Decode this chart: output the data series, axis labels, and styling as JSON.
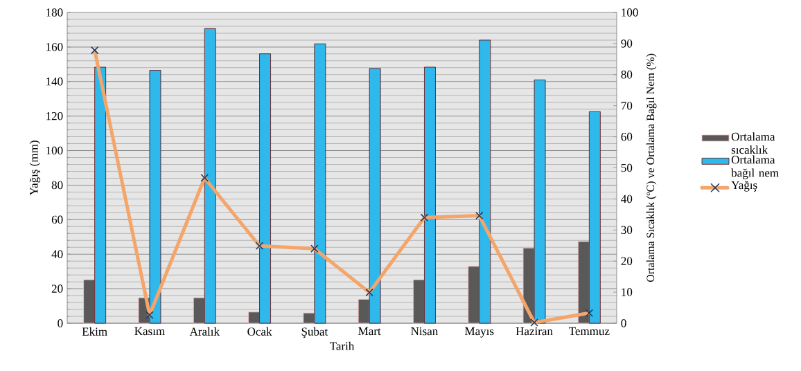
{
  "chart_data": {
    "type": "bar",
    "xlabel": "Tarih",
    "ylabel": "Yağış (mm)",
    "y2label": "Ortalama Sıcaklık (ºC) ve Ortalama Bağıl Nem (%)",
    "categories": [
      "Ekim",
      "Kasım",
      "Aralık",
      "Ocak",
      "Şubat",
      "Mart",
      "Nisan",
      "Mayıs",
      "Haziran",
      "Temmuz"
    ],
    "series": [
      {
        "name": "Ortalama sıcaklık",
        "axis": "y2",
        "color": "#595959",
        "values": [
          14.0,
          8.2,
          8.2,
          3.6,
          3.3,
          7.7,
          14.0,
          18.3,
          24.2,
          26.3
        ]
      },
      {
        "name": "Ortalama bağıl nem",
        "axis": "y2",
        "color": "#2eb8ec",
        "values": [
          82.4,
          81.4,
          94.8,
          86.7,
          89.9,
          82.0,
          82.4,
          91.1,
          78.3,
          68.1
        ]
      },
      {
        "name": "Yağış",
        "type": "line",
        "color": "#f4a56a",
        "marker": "cross",
        "values": [
          158.1,
          4.8,
          84.2,
          44.8,
          43.2,
          17.8,
          61.2,
          62.3,
          0.4,
          5.9
        ]
      }
    ],
    "ylim": [
      0,
      180
    ],
    "yticks": [
      0,
      20,
      40,
      60,
      80,
      100,
      120,
      140,
      160,
      180
    ],
    "y2lim": [
      0,
      100
    ],
    "y2ticks": [
      0,
      10,
      20,
      30,
      40,
      50,
      60,
      70,
      80,
      90,
      100
    ],
    "grid": "y",
    "legend": "right"
  }
}
